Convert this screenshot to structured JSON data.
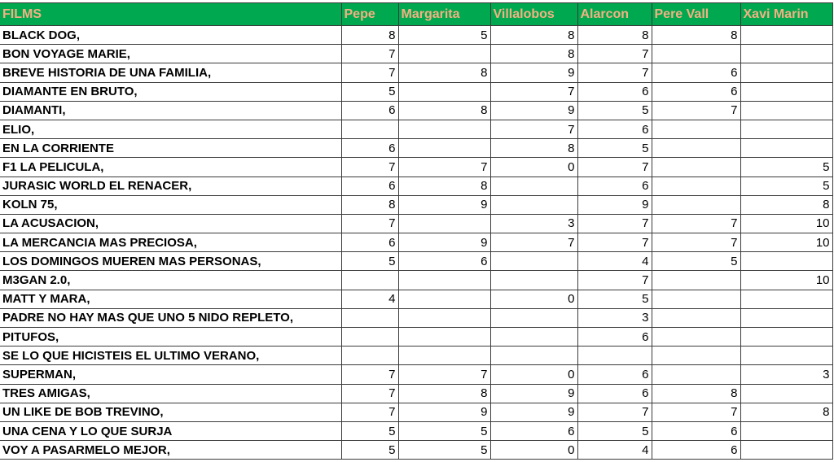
{
  "headers": [
    "FILMS",
    "Pepe",
    "Margarita",
    "Villalobos",
    "Alarcon",
    "Pere Vall",
    "Xavi Marin"
  ],
  "colors": {
    "header_bg": "#00A84F",
    "header_text": "#F4B183"
  },
  "rows": [
    {
      "film": "BLACK DOG,",
      "scores": [
        "8",
        "5",
        "8",
        "8",
        "8",
        ""
      ]
    },
    {
      "film": "BON VOYAGE MARIE,",
      "scores": [
        "7",
        "",
        "8",
        "7",
        "",
        ""
      ]
    },
    {
      "film": "BREVE HISTORIA DE UNA FAMILIA,",
      "scores": [
        "7",
        "8",
        "9",
        "7",
        "6",
        ""
      ]
    },
    {
      "film": "DIAMANTE EN BRUTO,",
      "scores": [
        "5",
        "",
        "7",
        "6",
        "6",
        ""
      ]
    },
    {
      "film": "DIAMANTI,",
      "scores": [
        "6",
        "8",
        "9",
        "5",
        "7",
        ""
      ]
    },
    {
      "film": "ELIO,",
      "scores": [
        "",
        "",
        "7",
        "6",
        "",
        ""
      ]
    },
    {
      "film": "EN LA CORRIENTE",
      "scores": [
        "6",
        "",
        "8",
        "5",
        "",
        ""
      ]
    },
    {
      "film": "F1 LA PELICULA,",
      "scores": [
        "7",
        "7",
        "0",
        "7",
        "",
        "5"
      ]
    },
    {
      "film": "JURASIC WORLD EL RENACER,",
      "scores": [
        "6",
        "8",
        "",
        "6",
        "",
        "5"
      ]
    },
    {
      "film": "KOLN 75,",
      "scores": [
        "8",
        "9",
        "",
        "9",
        "",
        "8"
      ]
    },
    {
      "film": "LA ACUSACION,",
      "scores": [
        "7",
        "",
        "3",
        "7",
        "7",
        "10"
      ]
    },
    {
      "film": "LA MERCANCIA MAS PRECIOSA,",
      "scores": [
        "6",
        "9",
        "7",
        "7",
        "7",
        "10"
      ]
    },
    {
      "film": "LOS DOMINGOS MUEREN MAS PERSONAS,",
      "scores": [
        "5",
        "6",
        "",
        "4",
        "5",
        ""
      ]
    },
    {
      "film": "M3GAN 2.0,",
      "scores": [
        "",
        "",
        "",
        "7",
        "",
        "10"
      ]
    },
    {
      "film": "MATT Y MARA,",
      "scores": [
        "4",
        "",
        "0",
        "5",
        "",
        ""
      ]
    },
    {
      "film": "PADRE NO HAY MAS QUE UNO 5 NIDO REPLETO,",
      "scores": [
        "",
        "",
        "",
        "3",
        "",
        ""
      ]
    },
    {
      "film": "PITUFOS,",
      "scores": [
        "",
        "",
        "",
        "6",
        "",
        ""
      ]
    },
    {
      "film": "SE LO QUE HICISTEIS EL ULTIMO VERANO,",
      "scores": [
        "",
        "",
        "",
        "",
        "",
        ""
      ]
    },
    {
      "film": "SUPERMAN,",
      "scores": [
        "7",
        "7",
        "0",
        "6",
        "",
        "3"
      ]
    },
    {
      "film": "TRES AMIGAS,",
      "scores": [
        "7",
        "8",
        "9",
        "6",
        "8",
        ""
      ]
    },
    {
      "film": "UN LIKE DE BOB TREVINO,",
      "scores": [
        "7",
        "9",
        "9",
        "7",
        "7",
        "8"
      ]
    },
    {
      "film": "UNA CENA Y LO QUE SURJA",
      "scores": [
        "5",
        "5",
        "6",
        "5",
        "6",
        ""
      ]
    },
    {
      "film": "VOY A PASARMELO MEJOR,",
      "scores": [
        "5",
        "5",
        "0",
        "4",
        "6",
        ""
      ]
    }
  ]
}
